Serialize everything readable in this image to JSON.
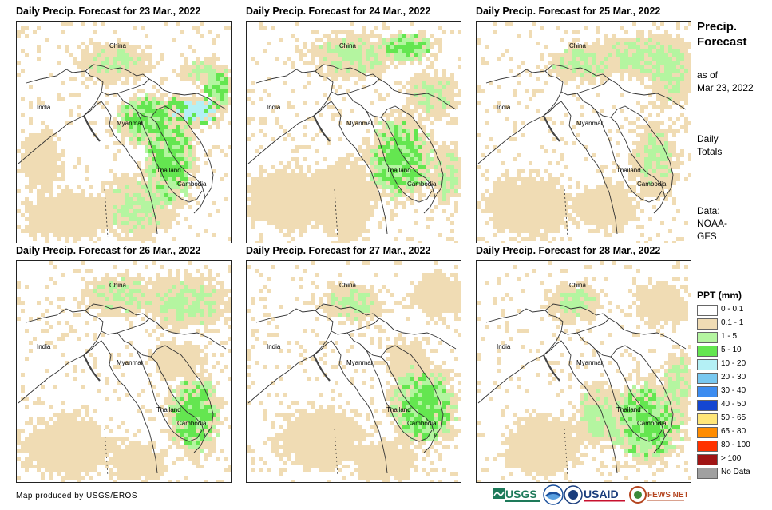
{
  "panels": [
    {
      "title": "Daily Precip. Forecast for 23 Mar., 2022",
      "labels": {
        "china": "China",
        "india": "India",
        "myanmar": "Myanmar",
        "thailand": "Thailand",
        "cambodia": "Cambodia"
      }
    },
    {
      "title": "Daily Precip. Forecast for 24 Mar., 2022",
      "labels": {
        "china": "China",
        "india": "India",
        "myanmar": "Myanmar",
        "thailand": "Thailand",
        "cambodia": "Cambodia"
      }
    },
    {
      "title": "Daily Precip. Forecast for 25 Mar., 2022",
      "labels": {
        "china": "China",
        "india": "India",
        "myanmar": "Myanmar",
        "thailand": "Thailand",
        "cambodia": "Cambodia"
      }
    },
    {
      "title": "Daily Precip. Forecast for 26 Mar., 2022",
      "labels": {
        "china": "China",
        "india": "India",
        "myanmar": "Myanmar",
        "thailand": "Thailand",
        "cambodia": "Cambodia"
      }
    },
    {
      "title": "Daily Precip. Forecast for 27 Mar., 2022",
      "labels": {
        "china": "China",
        "india": "India",
        "myanmar": "Myanmar",
        "thailand": "Thailand",
        "cambodia": "Cambodia"
      }
    },
    {
      "title": "Daily Precip. Forecast for 28 Mar., 2022",
      "labels": {
        "china": "China",
        "india": "India",
        "myanmar": "Myanmar",
        "thailand": "Thailand",
        "cambodia": "Cambodia"
      }
    }
  ],
  "side": {
    "title_line1": "Precip.",
    "title_line2": "Forecast",
    "asof_line1": "as of",
    "asof_line2": "Mar 23, 2022",
    "daily_line1": "Daily",
    "daily_line2": "Totals",
    "data_line1": "Data:",
    "data_line2": "NOAA-",
    "data_line3": "GFS"
  },
  "legend": {
    "title": "PPT (mm)",
    "items": [
      {
        "label": "0 - 0.1",
        "color": "#ffffff"
      },
      {
        "label": "0.1 - 1",
        "color": "#f0dcb4"
      },
      {
        "label": "1 - 5",
        "color": "#b4f5a0"
      },
      {
        "label": "5 - 10",
        "color": "#64e650"
      },
      {
        "label": "10 - 20",
        "color": "#b4f0f5"
      },
      {
        "label": "20 - 30",
        "color": "#78c8f0"
      },
      {
        "label": "30 - 40",
        "color": "#3c8cf0"
      },
      {
        "label": "40 - 50",
        "color": "#1446d2"
      },
      {
        "label": "50 - 65",
        "color": "#ffe678"
      },
      {
        "label": "65 - 80",
        "color": "#ff8c00"
      },
      {
        "label": "80 - 100",
        "color": "#ff3200"
      },
      {
        "label": "> 100",
        "color": "#a01414"
      },
      {
        "label": "No Data",
        "color": "#a0a0a0"
      }
    ]
  },
  "credit": "Map produced by USGS/EROS",
  "logos": {
    "usgs": "USGS",
    "usaid": "USAID",
    "fewsnet": "FEWS NET"
  }
}
